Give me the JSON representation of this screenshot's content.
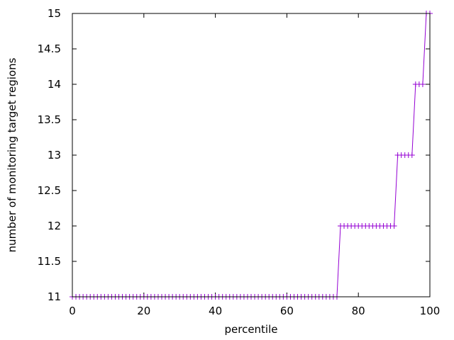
{
  "chart_data": {
    "type": "line",
    "title": "",
    "xlabel": "percentile",
    "ylabel": "number of monitoring target regions",
    "xlim": [
      0,
      100
    ],
    "ylim": [
      11,
      15
    ],
    "xticks": [
      0,
      20,
      40,
      60,
      80,
      100
    ],
    "yticks": [
      11,
      11.5,
      12,
      12.5,
      13,
      13.5,
      14,
      14.5,
      15
    ],
    "xtick_labels": [
      "0",
      "20",
      "40",
      "60",
      "80",
      "100"
    ],
    "ytick_labels": [
      "11",
      "11.5",
      "12",
      "12.5",
      "13",
      "13.5",
      "14",
      "14.5",
      "15"
    ],
    "grid": false,
    "legend": "none",
    "series": [
      {
        "color": "#9400d3",
        "marker": "plus",
        "segments": [
          {
            "x_from": 0,
            "x_to": 74,
            "y": 11
          },
          {
            "x_from": 75,
            "x_to": 90,
            "y": 12
          },
          {
            "x_from": 91,
            "x_to": 95,
            "y": 13
          },
          {
            "x_from": 96,
            "x_to": 98,
            "y": 14
          },
          {
            "x_from": 99,
            "x_to": 100,
            "y": 15
          }
        ]
      }
    ]
  }
}
